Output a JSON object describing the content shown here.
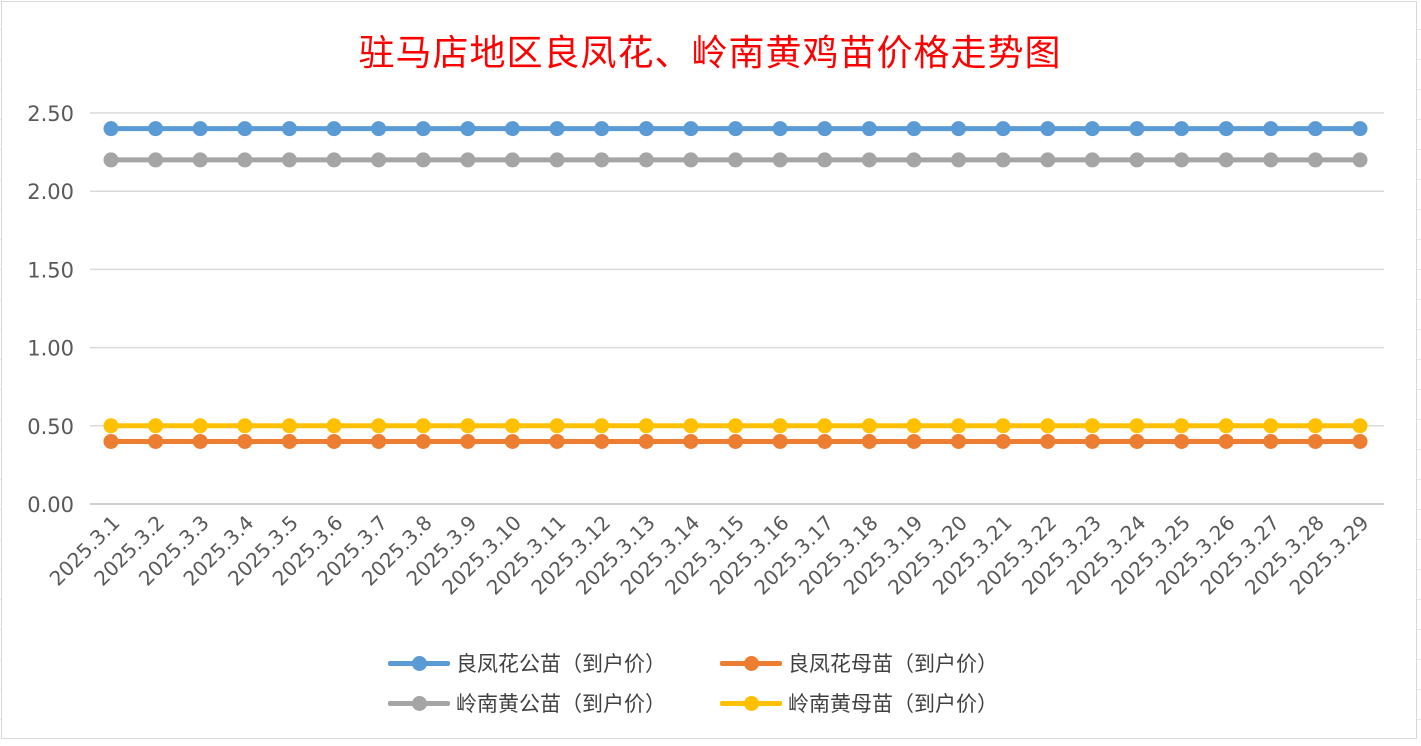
{
  "chart_data": {
    "type": "line",
    "title": "驻马店地区良凤花、岭南黄鸡苗价格走势图",
    "xlabel": "",
    "ylabel": "",
    "ylim": [
      0,
      2.5
    ],
    "yticks": [
      "0.00",
      "0.50",
      "1.00",
      "1.50",
      "2.00",
      "2.50"
    ],
    "grid": true,
    "legend_position": "bottom",
    "categories": [
      "2025.3.1",
      "2025.3.2",
      "2025.3.3",
      "2025.3.4",
      "2025.3.5",
      "2025.3.6",
      "2025.3.7",
      "2025.3.8",
      "2025.3.9",
      "2025.3.10",
      "2025.3.11",
      "2025.3.12",
      "2025.3.13",
      "2025.3.14",
      "2025.3.15",
      "2025.3.16",
      "2025.3.17",
      "2025.3.18",
      "2025.3.19",
      "2025.3.20",
      "2025.3.21",
      "2025.3.22",
      "2025.3.23",
      "2025.3.24",
      "2025.3.25",
      "2025.3.26",
      "2025.3.27",
      "2025.3.28",
      "2025.3.29"
    ],
    "series": [
      {
        "name": "良凤花公苗（到户价）",
        "color": "#5b9bd5",
        "values": [
          2.4,
          2.4,
          2.4,
          2.4,
          2.4,
          2.4,
          2.4,
          2.4,
          2.4,
          2.4,
          2.4,
          2.4,
          2.4,
          2.4,
          2.4,
          2.4,
          2.4,
          2.4,
          2.4,
          2.4,
          2.4,
          2.4,
          2.4,
          2.4,
          2.4,
          2.4,
          2.4,
          2.4,
          2.4
        ]
      },
      {
        "name": "良凤花母苗（到户价）",
        "color": "#ed7d31",
        "values": [
          0.4,
          0.4,
          0.4,
          0.4,
          0.4,
          0.4,
          0.4,
          0.4,
          0.4,
          0.4,
          0.4,
          0.4,
          0.4,
          0.4,
          0.4,
          0.4,
          0.4,
          0.4,
          0.4,
          0.4,
          0.4,
          0.4,
          0.4,
          0.4,
          0.4,
          0.4,
          0.4,
          0.4,
          0.4
        ]
      },
      {
        "name": "岭南黄公苗（到户价）",
        "color": "#a5a5a5",
        "values": [
          2.2,
          2.2,
          2.2,
          2.2,
          2.2,
          2.2,
          2.2,
          2.2,
          2.2,
          2.2,
          2.2,
          2.2,
          2.2,
          2.2,
          2.2,
          2.2,
          2.2,
          2.2,
          2.2,
          2.2,
          2.2,
          2.2,
          2.2,
          2.2,
          2.2,
          2.2,
          2.2,
          2.2,
          2.2
        ]
      },
      {
        "name": "岭南黄母苗（到户价）",
        "color": "#ffc000",
        "values": [
          0.5,
          0.5,
          0.5,
          0.5,
          0.5,
          0.5,
          0.5,
          0.5,
          0.5,
          0.5,
          0.5,
          0.5,
          0.5,
          0.5,
          0.5,
          0.5,
          0.5,
          0.5,
          0.5,
          0.5,
          0.5,
          0.5,
          0.5,
          0.5,
          0.5,
          0.5,
          0.5,
          0.5,
          0.5
        ]
      }
    ]
  }
}
